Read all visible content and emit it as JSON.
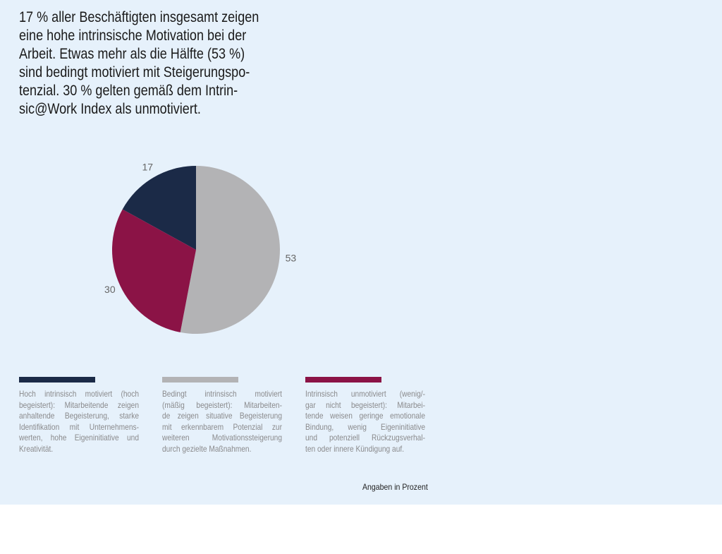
{
  "chart_data": {
    "type": "pie",
    "title": [
      "17 % aller Beschäftigten insgesamt zeigen",
      "eine hohe intrinsische Motivation bei der",
      "Arbeit. Etwas mehr als die Hälfte (53 %)",
      "sind bedingt motiviert mit Steigerungspo-",
      "tenzial.  30 % gelten gemäß dem Intrin-",
      "sic@Work Index als unmotiviert."
    ],
    "values": [
      17,
      53,
      30
    ],
    "colors": [
      "#1b2a47",
      "#b3b3b5",
      "#8b1346"
    ],
    "legend_texts": [
      [
        "Hoch intrinsisch motiviert (hoch",
        "begeistert): Mitarbeitende zeigen",
        "anhaltende Begeisterung, starke",
        "Identifikation mit Unternehmens-",
        "werten, hohe Eigeninitiative und",
        "Kreativität."
      ],
      [
        "Bedingt intrinsisch motiviert",
        "(mäßig begeistert): Mitarbeiten-",
        "de zeigen situative Begeisterung",
        "mit erkennbarem Potenzial zur",
        "weiteren Motivationssteigerung",
        "durch gezielte Maßnahmen."
      ],
      [
        "Intrinsisch unmotiviert (wenig/-",
        "gar nicht begeistert): Mitarbei-",
        "tende weisen geringe emotionale",
        "Bindung, wenig Eigeninitiative",
        "und potenziell Rückzugsverhal-",
        "ten oder innere Kündigung auf."
      ]
    ],
    "note": "Angaben in Prozent"
  }
}
